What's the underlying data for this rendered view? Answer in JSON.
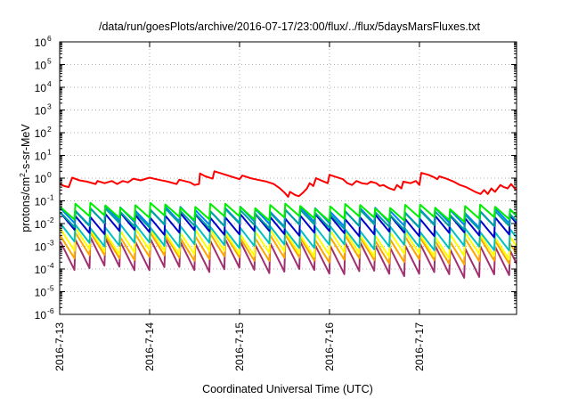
{
  "chart_data": {
    "type": "line",
    "title": "/data/run/goesPlots/archive/2016-07-17/23:00/flux/../flux/5daysMarsFluxes.txt",
    "xlabel": "Coordinated Universal Time (UTC)",
    "ylabel": {
      "pre": "protons/cm",
      "sup": "2",
      "post": "-s-sr-MeV"
    },
    "x_tick_labels": [
      "2016-7-13",
      "2016-7-14",
      "2016-7-15",
      "2016-7-16",
      "2016-7-17"
    ],
    "xlim_days": [
      0,
      5.08
    ],
    "y_scale": "log",
    "ylim": [
      1e-06,
      1000000.0
    ],
    "y_tick_exponents": [
      -6,
      -5,
      -4,
      -3,
      -2,
      -1,
      0,
      1,
      2,
      3,
      4,
      5,
      6
    ],
    "y_tick_base": "10",
    "grid": true,
    "legend": "none",
    "series": [
      {
        "color": "#ff0000",
        "sawtooth": false,
        "points": [
          [
            0,
            0.55
          ],
          [
            0.05,
            0.45
          ],
          [
            0.1,
            0.4
          ],
          [
            0.14,
            1.05
          ],
          [
            0.22,
            0.8
          ],
          [
            0.3,
            0.7
          ],
          [
            0.4,
            0.55
          ],
          [
            0.42,
            0.75
          ],
          [
            0.5,
            0.6
          ],
          [
            0.58,
            0.75
          ],
          [
            0.64,
            0.55
          ],
          [
            0.7,
            0.75
          ],
          [
            0.76,
            0.65
          ],
          [
            0.82,
            0.95
          ],
          [
            0.9,
            0.8
          ],
          [
            1.0,
            1.05
          ],
          [
            1.1,
            0.85
          ],
          [
            1.2,
            0.7
          ],
          [
            1.3,
            0.55
          ],
          [
            1.33,
            0.85
          ],
          [
            1.45,
            0.65
          ],
          [
            1.5,
            0.5
          ],
          [
            1.55,
            0.55
          ],
          [
            1.56,
            1.6
          ],
          [
            1.62,
            1.2
          ],
          [
            1.7,
            0.95
          ],
          [
            1.72,
            2.0
          ],
          [
            1.8,
            1.6
          ],
          [
            1.9,
            1.2
          ],
          [
            2.0,
            0.9
          ],
          [
            2.03,
            1.3
          ],
          [
            2.12,
            1.0
          ],
          [
            2.2,
            0.85
          ],
          [
            2.3,
            0.7
          ],
          [
            2.38,
            0.55
          ],
          [
            2.45,
            0.35
          ],
          [
            2.5,
            0.23
          ],
          [
            2.54,
            0.15
          ],
          [
            2.56,
            0.25
          ],
          [
            2.62,
            0.18
          ],
          [
            2.66,
            0.16
          ],
          [
            2.7,
            0.22
          ],
          [
            2.75,
            0.35
          ],
          [
            2.78,
            0.6
          ],
          [
            2.82,
            0.45
          ],
          [
            2.85,
            1.0
          ],
          [
            2.92,
            0.75
          ],
          [
            2.98,
            0.6
          ],
          [
            3.0,
            1.4
          ],
          [
            3.08,
            1.1
          ],
          [
            3.15,
            0.9
          ],
          [
            3.2,
            0.6
          ],
          [
            3.25,
            0.5
          ],
          [
            3.3,
            0.75
          ],
          [
            3.36,
            0.6
          ],
          [
            3.42,
            0.55
          ],
          [
            3.46,
            0.7
          ],
          [
            3.52,
            0.6
          ],
          [
            3.56,
            0.45
          ],
          [
            3.6,
            0.5
          ],
          [
            3.64,
            0.4
          ],
          [
            3.67,
            0.35
          ],
          [
            3.72,
            0.3
          ],
          [
            3.75,
            0.5
          ],
          [
            3.8,
            0.35
          ],
          [
            3.82,
            0.7
          ],
          [
            3.9,
            0.6
          ],
          [
            3.96,
            0.75
          ],
          [
            4.0,
            0.5
          ],
          [
            4.02,
            1.7
          ],
          [
            4.1,
            1.4
          ],
          [
            4.16,
            1.1
          ],
          [
            4.2,
            0.9
          ],
          [
            4.22,
            1.2
          ],
          [
            4.3,
            0.95
          ],
          [
            4.38,
            0.7
          ],
          [
            4.45,
            0.5
          ],
          [
            4.52,
            0.4
          ],
          [
            4.58,
            0.3
          ],
          [
            4.62,
            0.25
          ],
          [
            4.68,
            0.2
          ],
          [
            4.72,
            0.3
          ],
          [
            4.76,
            0.2
          ],
          [
            4.8,
            0.35
          ],
          [
            4.84,
            0.25
          ],
          [
            4.9,
            0.5
          ],
          [
            4.94,
            0.4
          ],
          [
            4.98,
            0.35
          ],
          [
            5.02,
            0.55
          ],
          [
            5.06,
            0.35
          ],
          [
            5.08,
            0.3
          ]
        ]
      },
      {
        "color": "#00ee00",
        "sawtooth": true,
        "baseline": 0.019,
        "trend": 0.8,
        "amplitude_decades": 0.55
      },
      {
        "color": "#00a0a0",
        "sawtooth": true,
        "baseline": 0.009,
        "trend": 0.7,
        "amplitude_decades": 0.65
      },
      {
        "color": "#0080ff",
        "sawtooth": true,
        "baseline": 0.011,
        "trend": 0.75,
        "amplitude_decades": 0.65
      },
      {
        "color": "#0000cc",
        "sawtooth": true,
        "baseline": 0.0045,
        "trend": 0.7,
        "amplitude_decades": 0.75
      },
      {
        "color": "#00c0c0",
        "sawtooth": true,
        "baseline": 0.0013,
        "trend": 0.6,
        "amplitude_decades": 0.8
      },
      {
        "color": "#ffff00",
        "sawtooth": true,
        "baseline": 0.0006,
        "trend": 0.55,
        "amplitude_decades": 0.95
      },
      {
        "color": "#ffa500",
        "sawtooth": true,
        "baseline": 0.00035,
        "trend": 0.5,
        "amplitude_decades": 1.0
      },
      {
        "color": "#a03070",
        "sawtooth": true,
        "baseline": 0.00012,
        "trend": 0.35,
        "amplitude_decades": 1.25
      }
    ]
  }
}
